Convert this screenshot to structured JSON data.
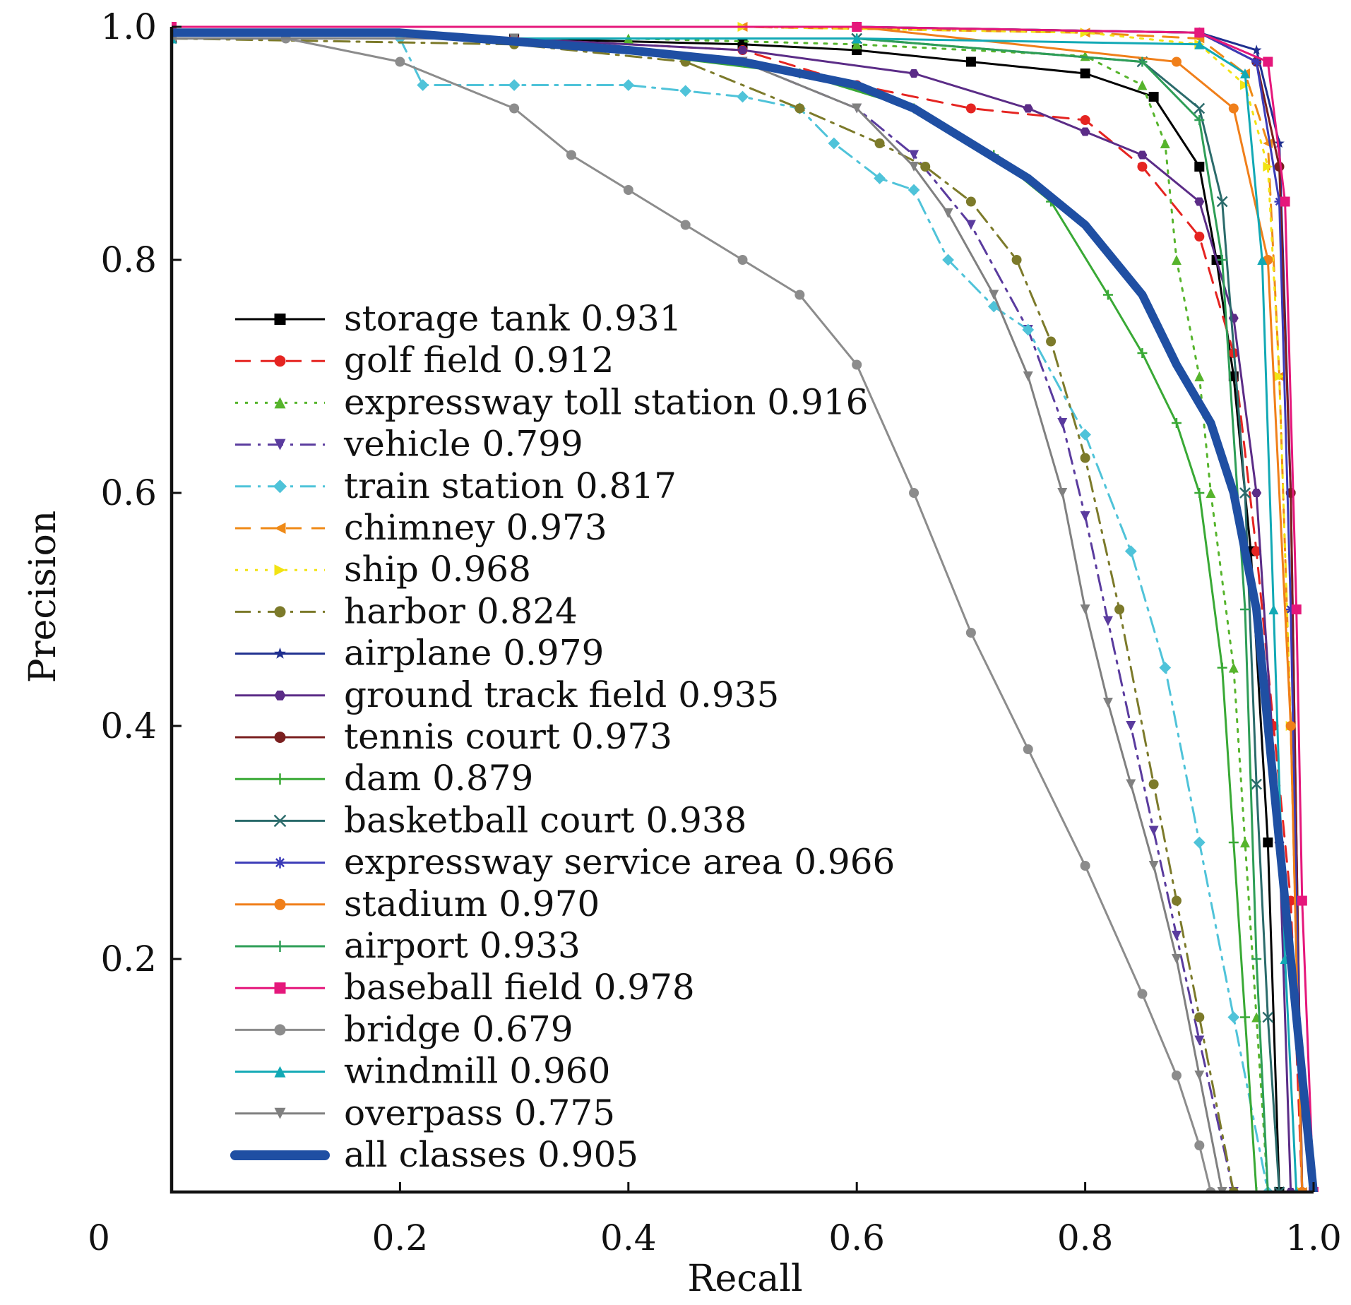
{
  "chart_data": {
    "type": "line",
    "title": "",
    "xlabel": "Recall",
    "ylabel": "Precision",
    "xlim": [
      0,
      1.0
    ],
    "ylim": [
      0,
      1.0
    ],
    "x_ticks": [
      {
        "value": 0,
        "label": "0"
      },
      {
        "value": 0.2,
        "label": "0.2"
      },
      {
        "value": 0.4,
        "label": "0.4"
      },
      {
        "value": 0.6,
        "label": "0.6"
      },
      {
        "value": 0.8,
        "label": "0.8"
      },
      {
        "value": 1.0,
        "label": "1.0"
      }
    ],
    "y_ticks": [
      {
        "value": 0.2,
        "label": "0.2"
      },
      {
        "value": 0.4,
        "label": "0.4"
      },
      {
        "value": 0.6,
        "label": "0.6"
      },
      {
        "value": 0.8,
        "label": "0.8"
      },
      {
        "value": 1.0,
        "label": "1.0"
      }
    ],
    "grid": false,
    "legend_position": "center-left",
    "series": [
      {
        "name": "storage tank 0.931",
        "color": "#000000",
        "marker": "square",
        "dash": "solid",
        "x": [
          0,
          0.3,
          0.5,
          0.6,
          0.7,
          0.8,
          0.86,
          0.9,
          0.915,
          0.93,
          0.945,
          0.96,
          0.97
        ],
        "y": [
          0.99,
          0.99,
          0.985,
          0.98,
          0.97,
          0.96,
          0.94,
          0.88,
          0.8,
          0.7,
          0.55,
          0.3,
          0.0
        ]
      },
      {
        "name": "golf field 0.912",
        "color": "#e52421",
        "marker": "circle",
        "dash": "dash",
        "x": [
          0,
          0.3,
          0.5,
          0.6,
          0.7,
          0.8,
          0.85,
          0.9,
          0.93,
          0.95,
          0.965,
          0.98,
          0.99
        ],
        "y": [
          0.99,
          0.99,
          0.98,
          0.95,
          0.93,
          0.92,
          0.88,
          0.82,
          0.72,
          0.55,
          0.4,
          0.25,
          0.0
        ]
      },
      {
        "name": "expressway toll station 0.916",
        "color": "#56b42c",
        "marker": "triangle",
        "dash": "dot",
        "x": [
          0,
          0.4,
          0.6,
          0.8,
          0.85,
          0.87,
          0.88,
          0.9,
          0.91,
          0.93,
          0.94,
          0.95,
          0.96
        ],
        "y": [
          0.99,
          0.99,
          0.985,
          0.975,
          0.95,
          0.9,
          0.8,
          0.7,
          0.6,
          0.45,
          0.3,
          0.15,
          0.0
        ]
      },
      {
        "name": "vehicle 0.799",
        "color": "#5a3b9e",
        "marker": "triangle-down",
        "dash": "dashdot",
        "x": [
          0,
          0.3,
          0.5,
          0.6,
          0.65,
          0.7,
          0.75,
          0.78,
          0.8,
          0.82,
          0.84,
          0.86,
          0.88,
          0.9,
          0.93
        ],
        "y": [
          0.99,
          0.99,
          0.97,
          0.93,
          0.89,
          0.83,
          0.74,
          0.66,
          0.58,
          0.49,
          0.4,
          0.31,
          0.22,
          0.13,
          0.0
        ]
      },
      {
        "name": "train station 0.817",
        "color": "#4fc3d9",
        "marker": "diamond",
        "dash": "dashdot",
        "x": [
          0,
          0.2,
          0.22,
          0.3,
          0.4,
          0.45,
          0.5,
          0.55,
          0.58,
          0.62,
          0.65,
          0.68,
          0.72,
          0.75,
          0.8,
          0.84,
          0.87,
          0.9,
          0.93,
          0.96
        ],
        "y": [
          0.99,
          0.99,
          0.95,
          0.95,
          0.95,
          0.945,
          0.94,
          0.93,
          0.9,
          0.87,
          0.86,
          0.8,
          0.76,
          0.74,
          0.65,
          0.55,
          0.45,
          0.3,
          0.15,
          0.0
        ]
      },
      {
        "name": "chimney 0.973",
        "color": "#ef8a17",
        "marker": "triangle-left",
        "dash": "dash",
        "x": [
          0,
          0.5,
          0.8,
          0.9,
          0.94,
          0.96,
          0.97,
          0.98,
          0.99
        ],
        "y": [
          1.0,
          1.0,
          0.995,
          0.99,
          0.96,
          0.9,
          0.7,
          0.4,
          0.0
        ]
      },
      {
        "name": "ship 0.968",
        "color": "#f2e313",
        "marker": "triangle-right",
        "dash": "dot",
        "x": [
          0,
          0.5,
          0.8,
          0.9,
          0.94,
          0.96,
          0.97,
          0.98,
          0.99
        ],
        "y": [
          1.0,
          1.0,
          0.995,
          0.985,
          0.95,
          0.88,
          0.7,
          0.4,
          0.0
        ]
      },
      {
        "name": "harbor 0.824",
        "color": "#7c7a2a",
        "marker": "circle",
        "dash": "dashdot",
        "x": [
          0,
          0.3,
          0.45,
          0.55,
          0.62,
          0.66,
          0.7,
          0.74,
          0.77,
          0.8,
          0.83,
          0.86,
          0.88,
          0.9,
          0.93
        ],
        "y": [
          0.99,
          0.985,
          0.97,
          0.93,
          0.9,
          0.88,
          0.85,
          0.8,
          0.73,
          0.63,
          0.5,
          0.35,
          0.25,
          0.15,
          0.0
        ]
      },
      {
        "name": "airplane 0.979",
        "color": "#1f2f8f",
        "marker": "star",
        "dash": "solid",
        "x": [
          0,
          0.6,
          0.9,
          0.95,
          0.97,
          0.98,
          0.99
        ],
        "y": [
          1.0,
          1.0,
          0.995,
          0.98,
          0.9,
          0.6,
          0.0
        ]
      },
      {
        "name": "ground track field 0.935",
        "color": "#5b2c87",
        "marker": "hexagon",
        "dash": "solid",
        "x": [
          0,
          0.3,
          0.5,
          0.65,
          0.75,
          0.8,
          0.85,
          0.9,
          0.93,
          0.95,
          0.97,
          0.98
        ],
        "y": [
          0.99,
          0.99,
          0.98,
          0.96,
          0.93,
          0.91,
          0.89,
          0.85,
          0.75,
          0.6,
          0.3,
          0.0
        ]
      },
      {
        "name": "tennis court 0.973",
        "color": "#7a1f1f",
        "marker": "circle",
        "dash": "solid",
        "x": [
          0,
          0.6,
          0.9,
          0.95,
          0.97,
          0.98,
          0.99
        ],
        "y": [
          1.0,
          1.0,
          0.995,
          0.97,
          0.88,
          0.6,
          0.0
        ]
      },
      {
        "name": "dam 0.879",
        "color": "#39a935",
        "marker": "plus",
        "dash": "solid",
        "x": [
          0,
          0.3,
          0.55,
          0.65,
          0.72,
          0.77,
          0.82,
          0.85,
          0.88,
          0.9,
          0.92,
          0.93,
          0.94,
          0.95
        ],
        "y": [
          0.99,
          0.99,
          0.96,
          0.93,
          0.89,
          0.85,
          0.77,
          0.72,
          0.66,
          0.6,
          0.45,
          0.3,
          0.15,
          0.0
        ]
      },
      {
        "name": "basketball court 0.938",
        "color": "#2b6b6b",
        "marker": "x",
        "dash": "solid",
        "x": [
          0,
          0.6,
          0.85,
          0.9,
          0.92,
          0.94,
          0.95,
          0.96,
          0.97
        ],
        "y": [
          0.99,
          0.99,
          0.97,
          0.93,
          0.85,
          0.6,
          0.35,
          0.15,
          0.0
        ]
      },
      {
        "name": "expressway service area 0.966",
        "color": "#3b3bb8",
        "marker": "asterisk",
        "dash": "solid",
        "x": [
          0,
          0.6,
          0.9,
          0.95,
          0.97,
          0.98,
          0.99
        ],
        "y": [
          1.0,
          1.0,
          0.995,
          0.97,
          0.85,
          0.5,
          0.0
        ]
      },
      {
        "name": "stadium 0.970",
        "color": "#f07f1a",
        "marker": "circle",
        "dash": "solid",
        "x": [
          0,
          0.6,
          0.88,
          0.93,
          0.96,
          0.98,
          0.99
        ],
        "y": [
          1.0,
          1.0,
          0.97,
          0.93,
          0.8,
          0.4,
          0.0
        ]
      },
      {
        "name": "airport 0.933",
        "color": "#2e9e57",
        "marker": "plus",
        "dash": "solid",
        "x": [
          0,
          0.6,
          0.85,
          0.9,
          0.92,
          0.94,
          0.95,
          0.96
        ],
        "y": [
          0.99,
          0.99,
          0.97,
          0.92,
          0.8,
          0.5,
          0.2,
          0.0
        ]
      },
      {
        "name": "baseball field 0.978",
        "color": "#e5177b",
        "marker": "square",
        "dash": "solid",
        "x": [
          0,
          0.6,
          0.9,
          0.96,
          0.975,
          0.985,
          0.99,
          1.0
        ],
        "y": [
          1.0,
          1.0,
          0.995,
          0.97,
          0.85,
          0.5,
          0.25,
          0.0
        ]
      },
      {
        "name": "bridge 0.679",
        "color": "#8c8c8c",
        "marker": "circle",
        "dash": "solid",
        "x": [
          0,
          0.1,
          0.2,
          0.3,
          0.35,
          0.4,
          0.45,
          0.5,
          0.55,
          0.6,
          0.65,
          0.7,
          0.75,
          0.8,
          0.85,
          0.88,
          0.9,
          0.91
        ],
        "y": [
          0.99,
          0.99,
          0.97,
          0.93,
          0.89,
          0.86,
          0.83,
          0.8,
          0.77,
          0.71,
          0.6,
          0.48,
          0.38,
          0.28,
          0.17,
          0.1,
          0.04,
          0.0
        ]
      },
      {
        "name": "windmill 0.960",
        "color": "#12a9b5",
        "marker": "triangle",
        "dash": "solid",
        "x": [
          0,
          0.6,
          0.9,
          0.94,
          0.955,
          0.965,
          0.975,
          0.985
        ],
        "y": [
          0.99,
          0.99,
          0.985,
          0.96,
          0.8,
          0.5,
          0.2,
          0.0
        ]
      },
      {
        "name": "overpass 0.775",
        "color": "#808080",
        "marker": "triangle-down",
        "dash": "solid",
        "x": [
          0,
          0.3,
          0.5,
          0.6,
          0.65,
          0.68,
          0.72,
          0.75,
          0.78,
          0.8,
          0.82,
          0.84,
          0.86,
          0.88,
          0.9,
          0.92
        ],
        "y": [
          0.99,
          0.99,
          0.97,
          0.93,
          0.88,
          0.84,
          0.77,
          0.7,
          0.6,
          0.5,
          0.42,
          0.35,
          0.28,
          0.2,
          0.1,
          0.0
        ]
      },
      {
        "name": "all classes 0.905",
        "color": "#1f4fa3",
        "marker": "none",
        "dash": "solid",
        "emphasis": true,
        "x": [
          0,
          0.2,
          0.4,
          0.5,
          0.6,
          0.65,
          0.7,
          0.75,
          0.8,
          0.85,
          0.88,
          0.91,
          0.93,
          0.95,
          0.96,
          0.97,
          0.98,
          0.99,
          1.0
        ],
        "y": [
          0.995,
          0.995,
          0.98,
          0.97,
          0.95,
          0.93,
          0.9,
          0.87,
          0.83,
          0.77,
          0.71,
          0.66,
          0.6,
          0.5,
          0.4,
          0.3,
          0.2,
          0.1,
          0.0
        ]
      }
    ]
  }
}
